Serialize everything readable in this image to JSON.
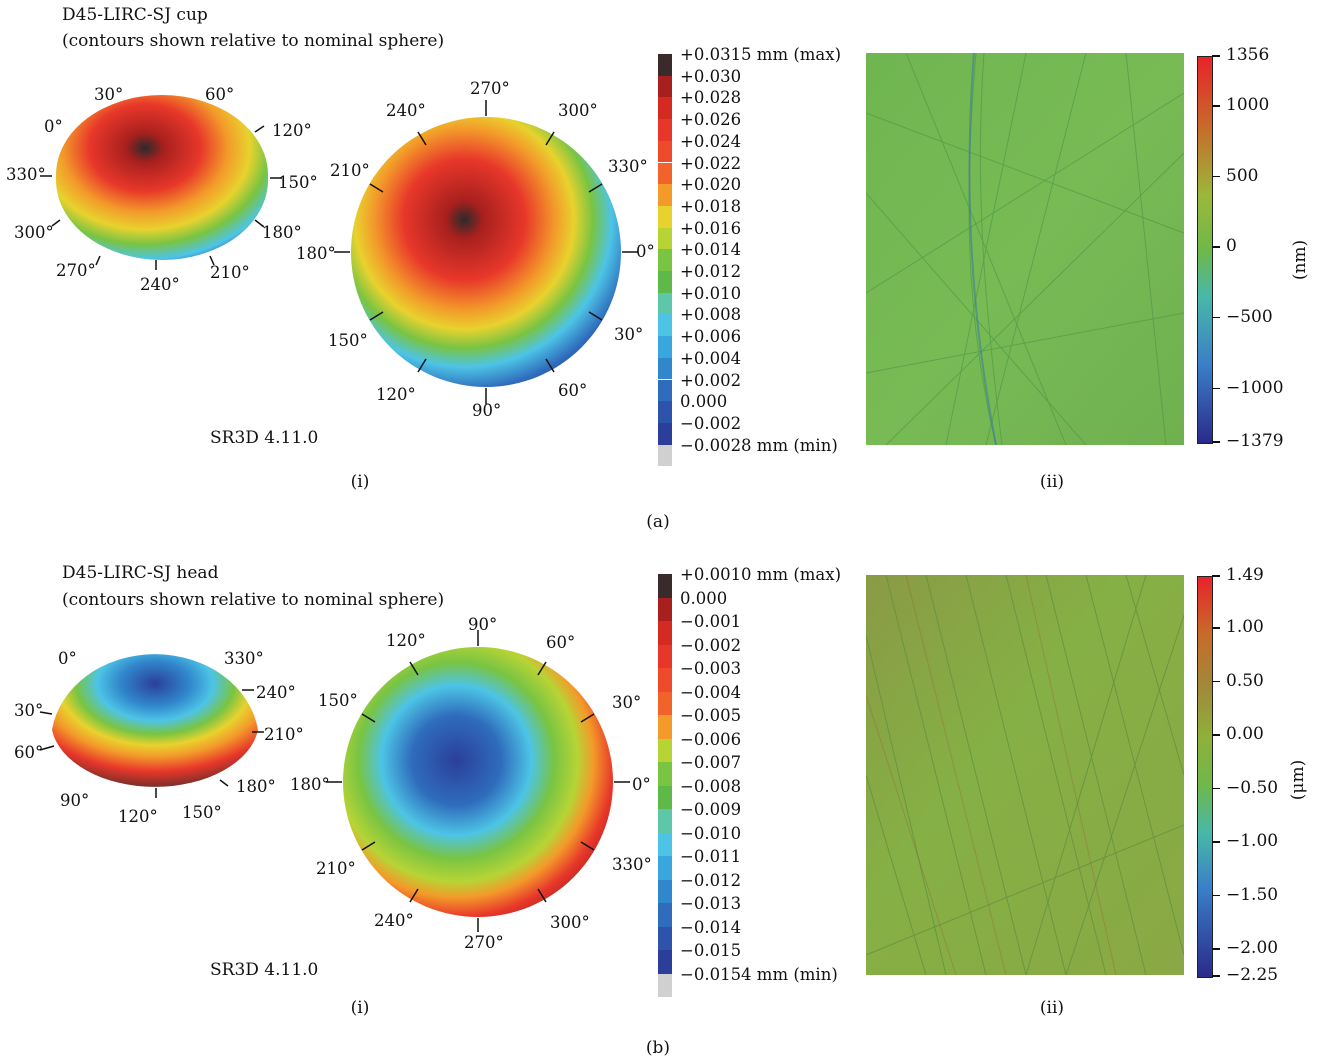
{
  "panel_a": {
    "title_line1": "D45-LIRC-SJ cup",
    "title_line2": "(contours shown relative to nominal sphere)",
    "software": "SR3D 4.11.0",
    "small_sphere_angles": [
      "0°",
      "30°",
      "60°",
      "120°",
      "330°",
      "150°",
      "300°",
      "180°",
      "270°",
      "240°",
      "210°"
    ],
    "large_sphere_angles": [
      "270°",
      "240°",
      "300°",
      "210°",
      "330°",
      "180°",
      "0°",
      "150°",
      "30°",
      "120°",
      "60°",
      "90°"
    ],
    "legend": [
      "+0.0315 mm (max)",
      "+0.030",
      "+0.028",
      "+0.026",
      "+0.024",
      "+0.022",
      "+0.020",
      "+0.018",
      "+0.016",
      "+0.014",
      "+0.012",
      "+0.010",
      "+0.008",
      "+0.006",
      "+0.004",
      "+0.002",
      "0.000",
      "−0.002",
      "−0.0028 mm (min)"
    ],
    "legend_colors": [
      "#3a2a2a",
      "#a8201e",
      "#d52a22",
      "#e8372a",
      "#ef4a2c",
      "#f2632b",
      "#f39a2a",
      "#e8d22e",
      "#b7d435",
      "#79c443",
      "#5fb948",
      "#5ec6a9",
      "#4dc4e6",
      "#3aa6de",
      "#3187cc",
      "#2f6cbc",
      "#2d54aa",
      "#2b3f9a",
      "#d0d0d0"
    ],
    "colorbar_ticks": [
      "1356",
      "1000",
      "500",
      "0",
      "−500",
      "−1000",
      "−1379"
    ],
    "colorbar_unit": "(nm)",
    "sub_i": "(i)",
    "sub_ii": "(ii)",
    "label": "(a)"
  },
  "panel_b": {
    "title_line1": "D45-LIRC-SJ head",
    "title_line2": "(contours shown relative to nominal sphere)",
    "software": "SR3D 4.11.0",
    "small_sphere_angles": [
      "0°",
      "330°",
      "240°",
      "30°",
      "210°",
      "60°",
      "180°",
      "90°",
      "120°",
      "150°"
    ],
    "large_sphere_angles": [
      "90°",
      "120°",
      "60°",
      "150°",
      "30°",
      "180°",
      "0°",
      "210°",
      "330°",
      "240°",
      "300°",
      "270°"
    ],
    "legend": [
      "+0.0010 mm (max)",
      "0.000",
      "−0.001",
      "−0.002",
      "−0.003",
      "−0.004",
      "−0.005",
      "−0.006",
      "−0.007",
      "−0.008",
      "−0.009",
      "−0.010",
      "−0.011",
      "−0.012",
      "−0.013",
      "−0.014",
      "−0.015",
      "−0.0154 mm (min)"
    ],
    "legend_colors": [
      "#3a2a2a",
      "#a8201e",
      "#d52a22",
      "#e8372a",
      "#ef4a2c",
      "#f2632b",
      "#f39a2a",
      "#b7d435",
      "#79c443",
      "#5fb948",
      "#5ec6a9",
      "#4dc4e6",
      "#3aa6de",
      "#3187cc",
      "#2f6cbc",
      "#2d54aa",
      "#2b3f9a",
      "#d0d0d0"
    ],
    "colorbar_ticks": [
      "1.49",
      "1.00",
      "0.50",
      "0.00",
      "−0.50",
      "−1.00",
      "−1.50",
      "−2.00",
      "−2.25"
    ],
    "colorbar_unit": "(μm)",
    "sub_i": "(i)",
    "sub_ii": "(ii)",
    "label": "(b)"
  }
}
